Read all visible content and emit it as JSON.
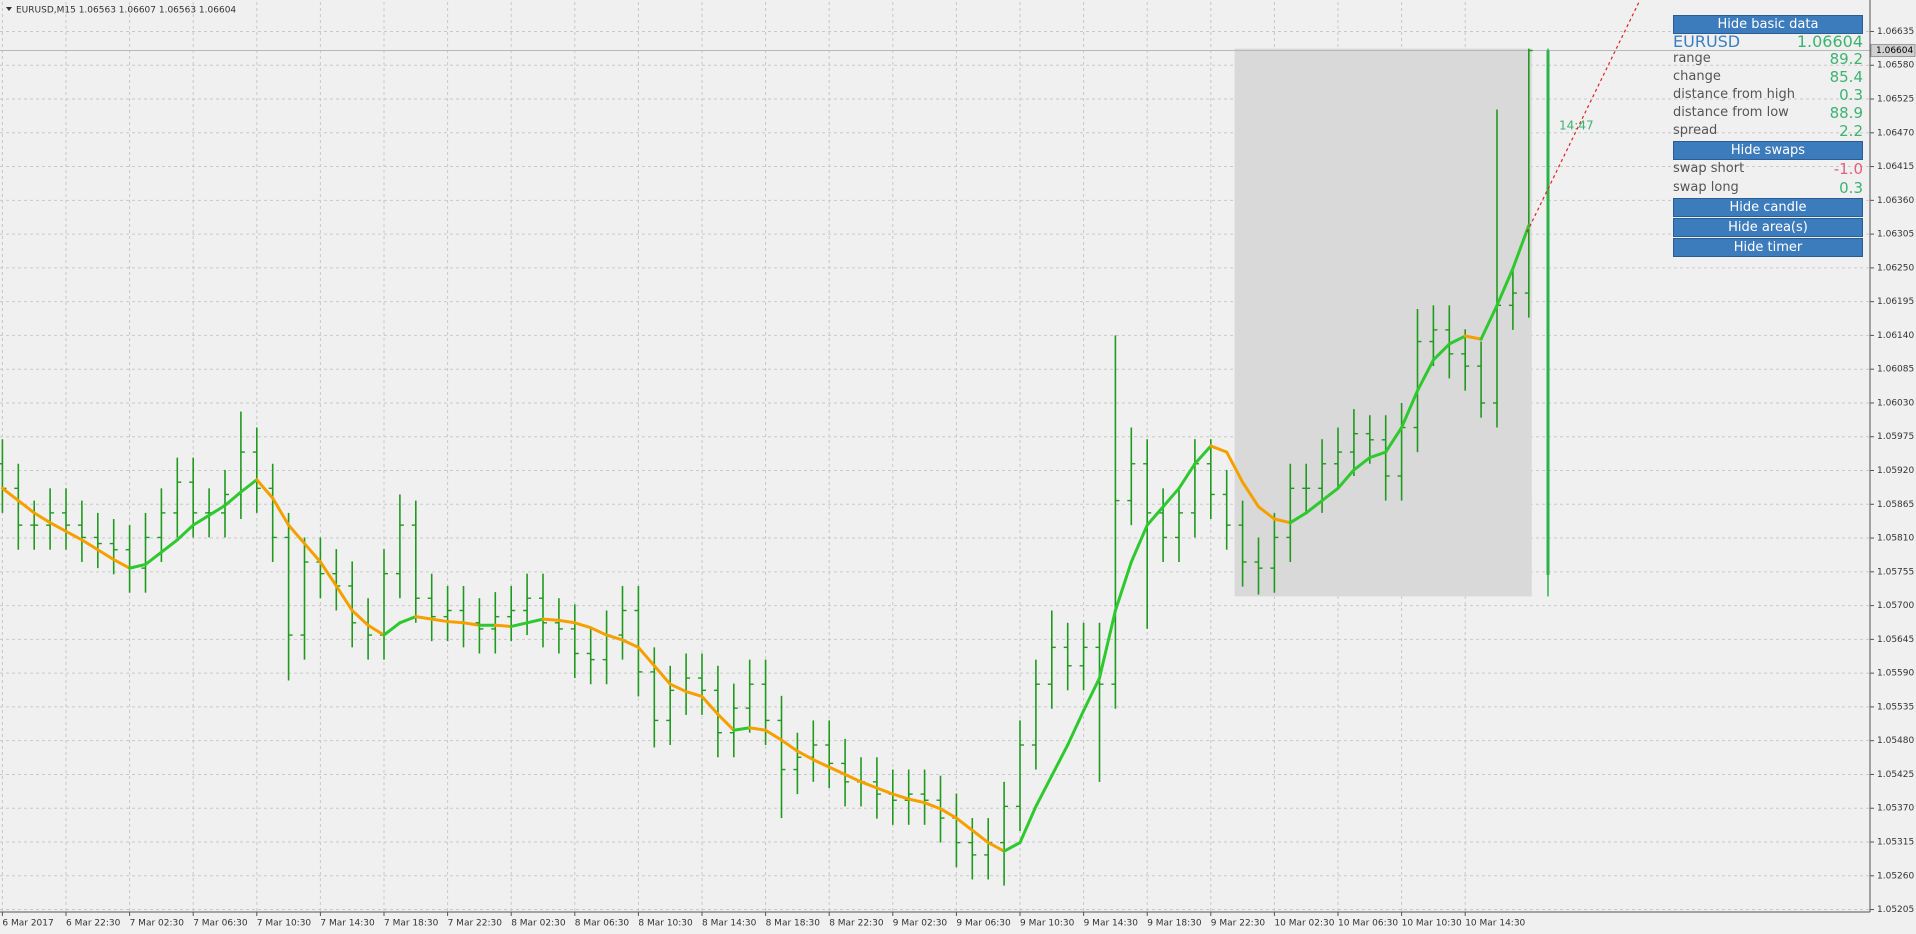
{
  "chart_data": {
    "type": "ohlc",
    "title": "EURUSD,M15  1.06563 1.06607 1.06563 1.06604",
    "color": "#1f9a1f",
    "categories": [
      "6 Mar 2017",
      null,
      null,
      null,
      "6 Mar 22:30",
      null,
      null,
      null,
      "7 Mar 02:30",
      null,
      null,
      null,
      "7 Mar 06:30",
      null,
      null,
      null,
      "7 Mar 10:30",
      null,
      null,
      null,
      "7 Mar 14:30",
      null,
      null,
      null,
      "7 Mar 18:30",
      null,
      null,
      null,
      "7 Mar 22:30",
      null,
      null,
      null,
      "8 Mar 02:30",
      null,
      null,
      null,
      "8 Mar 06:30",
      null,
      null,
      null,
      "8 Mar 10:30",
      null,
      null,
      null,
      "8 Mar 14:30",
      null,
      null,
      null,
      "8 Mar 18:30",
      null,
      null,
      null,
      "8 Mar 22:30",
      null,
      null,
      null,
      "9 Mar 02:30",
      null,
      null,
      null,
      "9 Mar 06:30",
      null,
      null,
      null,
      "9 Mar 10:30",
      null,
      null,
      null,
      "9 Mar 14:30",
      null,
      null,
      null,
      "9 Mar 18:30",
      null,
      null,
      null,
      "9 Mar 22:30",
      null,
      null,
      null,
      "10 Mar 02:30",
      null,
      null,
      null,
      "10 Mar 06:30",
      null,
      null,
      null,
      "10 Mar 10:30",
      null,
      null,
      null,
      "10 Mar 14:30",
      null,
      null,
      null,
      null
    ],
    "open": [
      1.05931,
      1.05891,
      1.05831,
      1.05831,
      1.05851,
      1.05831,
      1.05811,
      1.05801,
      1.05791,
      1.05761,
      1.05811,
      1.05851,
      1.05901,
      1.05851,
      1.05851,
      1.05881,
      1.0595,
      1.05891,
      1.05811,
      1.05652,
      1.05771,
      1.05752,
      1.05732,
      1.05672,
      1.05652,
      1.05752,
      1.05831,
      1.05712,
      1.05682,
      1.05692,
      1.05672,
      1.05662,
      1.05682,
      1.05692,
      1.05712,
      1.05672,
      1.05662,
      1.05622,
      1.05612,
      1.05652,
      1.05692,
      1.05592,
      1.05513,
      1.05562,
      1.05582,
      1.05562,
      1.05493,
      1.05533,
      1.05572,
      1.05513,
      1.05433,
      1.05453,
      1.05473,
      1.05443,
      1.05413,
      1.05413,
      1.05393,
      1.05383,
      1.05393,
      1.05383,
      1.05354,
      1.05314,
      1.05294,
      1.05314,
      1.05373,
      1.05473,
      1.05572,
      1.05632,
      1.05602,
      1.05632,
      1.05572,
      1.05871,
      1.05931,
      1.05851,
      1.05811,
      1.05851,
      1.05931,
      1.05881,
      1.05831,
      1.05771,
      1.05761,
      1.05811,
      1.05891,
      1.05891,
      1.05931,
      1.0595,
      1.0598,
      1.0597,
      1.05911,
      1.0599,
      1.0613,
      1.06149,
      1.0611,
      1.0609,
      1.0603,
      1.06189,
      1.06209
    ],
    "high": [
      1.05971,
      1.05931,
      1.05871,
      1.05891,
      1.05891,
      1.05871,
      1.05851,
      1.05841,
      1.05831,
      1.05851,
      1.05891,
      1.05941,
      1.05941,
      1.05891,
      1.05921,
      1.06016,
      1.0599,
      1.05931,
      1.05851,
      1.05811,
      1.05811,
      1.05792,
      1.05772,
      1.05712,
      1.05792,
      1.05881,
      1.05871,
      1.05752,
      1.05732,
      1.05732,
      1.05712,
      1.05722,
      1.05732,
      1.05752,
      1.05752,
      1.05712,
      1.05702,
      1.05662,
      1.05692,
      1.05732,
      1.05732,
      1.05632,
      1.05602,
      1.05622,
      1.05622,
      1.05602,
      1.05573,
      1.05612,
      1.05612,
      1.05553,
      1.05493,
      1.05513,
      1.05513,
      1.05483,
      1.05453,
      1.05453,
      1.05433,
      1.05433,
      1.05433,
      1.05423,
      1.05394,
      1.05354,
      1.05354,
      1.05413,
      1.05513,
      1.05612,
      1.05692,
      1.05672,
      1.05672,
      1.05672,
      1.0614,
      1.0599,
      1.05971,
      1.05891,
      1.05891,
      1.05971,
      1.05971,
      1.05921,
      1.05871,
      1.05811,
      1.05851,
      1.05931,
      1.05931,
      1.05971,
      1.0599,
      1.0602,
      1.0601,
      1.0601,
      1.0603,
      1.06183,
      1.06189,
      1.06189,
      1.0615,
      1.0613,
      1.06508,
      1.06249,
      1.06607
    ],
    "low": [
      1.05851,
      1.05791,
      1.05791,
      1.05791,
      1.05791,
      1.05771,
      1.05761,
      1.05751,
      1.05721,
      1.05721,
      1.05771,
      1.05811,
      1.05811,
      1.05811,
      1.05811,
      1.05841,
      1.05851,
      1.05771,
      1.05578,
      1.05612,
      1.05712,
      1.05692,
      1.05632,
      1.05612,
      1.05612,
      1.05712,
      1.05672,
      1.05642,
      1.05642,
      1.05632,
      1.05622,
      1.05622,
      1.05642,
      1.05652,
      1.05632,
      1.05622,
      1.05582,
      1.05572,
      1.05572,
      1.05612,
      1.05552,
      1.05469,
      1.05473,
      1.05522,
      1.05522,
      1.05453,
      1.05453,
      1.05493,
      1.05473,
      1.05354,
      1.05393,
      1.05413,
      1.05403,
      1.05373,
      1.05373,
      1.05353,
      1.05343,
      1.05343,
      1.05343,
      1.05314,
      1.05274,
      1.05254,
      1.05254,
      1.05244,
      1.05333,
      1.05433,
      1.05532,
      1.05562,
      1.05562,
      1.05413,
      1.05532,
      1.05831,
      1.05662,
      1.05771,
      1.05771,
      1.05811,
      1.05841,
      1.05791,
      1.05731,
      1.05718,
      1.05721,
      1.05771,
      1.05851,
      1.05851,
      1.05891,
      1.05911,
      1.05931,
      1.05871,
      1.05871,
      1.0595,
      1.0609,
      1.0607,
      1.0605,
      1.06006,
      1.0599,
      1.06149,
      1.06169
    ],
    "close": [
      1.05891,
      1.05831,
      1.05831,
      1.05851,
      1.05831,
      1.05811,
      1.05801,
      1.05791,
      1.05761,
      1.05811,
      1.05851,
      1.05901,
      1.05851,
      1.05851,
      1.05881,
      1.0595,
      1.05891,
      1.05811,
      1.05652,
      1.05771,
      1.05752,
      1.05732,
      1.05672,
      1.05652,
      1.05752,
      1.05831,
      1.05712,
      1.05682,
      1.05692,
      1.05672,
      1.05662,
      1.05682,
      1.05692,
      1.05712,
      1.05672,
      1.05662,
      1.05622,
      1.05612,
      1.05652,
      1.05692,
      1.05592,
      1.05513,
      1.05562,
      1.05582,
      1.05562,
      1.05493,
      1.05533,
      1.05572,
      1.05513,
      1.05433,
      1.05453,
      1.05473,
      1.05443,
      1.05413,
      1.05413,
      1.05393,
      1.05383,
      1.05393,
      1.05383,
      1.05354,
      1.05314,
      1.05294,
      1.05314,
      1.05373,
      1.05473,
      1.05572,
      1.05632,
      1.05602,
      1.05632,
      1.05572,
      1.05871,
      1.05931,
      1.05851,
      1.05811,
      1.05851,
      1.05931,
      1.05881,
      1.05831,
      1.05771,
      1.05761,
      1.05811,
      1.05891,
      1.05891,
      1.05931,
      1.0595,
      1.0598,
      1.0597,
      1.05911,
      1.0599,
      1.0613,
      1.06149,
      1.0611,
      1.0609,
      1.0603,
      1.06189,
      1.06209,
      1.06604
    ],
    "ma": {
      "up_color": "#2ec92e",
      "down_color": "#f5a000",
      "values": [
        1.05891,
        1.05871,
        1.05851,
        1.05835,
        1.05821,
        1.05807,
        1.05791,
        1.05775,
        1.05761,
        1.05767,
        1.05787,
        1.05807,
        1.05831,
        1.05847,
        1.05863,
        1.05885,
        1.05905,
        1.05875,
        1.05831,
        1.05801,
        1.05771,
        1.05732,
        1.05692,
        1.05668,
        1.05652,
        1.05672,
        1.05682,
        1.05678,
        1.05674,
        1.05672,
        1.05668,
        1.05668,
        1.05666,
        1.05672,
        1.05678,
        1.05676,
        1.05672,
        1.05664,
        1.05652,
        1.05644,
        1.05632,
        1.05602,
        1.05572,
        1.0556,
        1.05552,
        1.05523,
        1.05497,
        1.05501,
        1.05497,
        1.05481,
        1.05463,
        1.05449,
        1.05437,
        1.05425,
        1.05413,
        1.05403,
        1.05393,
        1.05385,
        1.05379,
        1.05369,
        1.05354,
        1.05334,
        1.05314,
        1.053,
        1.05314,
        1.05373,
        1.05423,
        1.05473,
        1.05529,
        1.05582,
        1.05692,
        1.05771,
        1.05831,
        1.05861,
        1.05891,
        1.05931,
        1.0596,
        1.0595,
        1.05901,
        1.05861,
        1.05841,
        1.05835,
        1.05851,
        1.05871,
        1.05891,
        1.05921,
        1.05941,
        1.0595,
        1.0599,
        1.0605,
        1.061,
        1.06126,
        1.06139,
        1.06134,
        1.06189,
        1.06249,
        1.06319
      ]
    },
    "area": {
      "bars": [
        78,
        96
      ],
      "high": 1.06607,
      "low": 1.05715,
      "color": "#d9d9d9"
    },
    "candle": {
      "open": 1.0575,
      "high": 1.06607,
      "low": 1.05715,
      "close": 1.06604,
      "color": "#2bb24c"
    },
    "timer": "14:47",
    "bid": 1.06604,
    "ylim": [
      1.05201,
      1.06683
    ],
    "yticks": [
      1.05205,
      {
        "value": 1.0526,
        "label": "1.05260"
      },
      1.05315,
      {
        "value": 1.0537,
        "label": "1.05370"
      },
      1.05425,
      {
        "value": 1.0548,
        "label": "1.05480"
      },
      1.05535,
      {
        "value": 1.0559,
        "label": "1.05590"
      },
      1.05645,
      {
        "value": 1.057,
        "label": "1.05700"
      },
      1.05755,
      {
        "value": 1.0581,
        "label": "1.05810"
      },
      1.05865,
      {
        "value": 1.0592,
        "label": "1.05920"
      },
      1.05975,
      {
        "value": 1.0603,
        "label": "1.06030"
      },
      1.06085,
      {
        "value": 1.0614,
        "label": "1.06140"
      },
      1.06195,
      {
        "value": 1.0625,
        "label": "1.06250"
      },
      1.06305,
      {
        "value": 1.0636,
        "label": "1.06360"
      },
      1.06415,
      {
        "value": 1.0647,
        "label": "1.06470"
      },
      1.06525,
      {
        "value": 1.0658,
        "label": "1.06580"
      },
      1.06635
    ],
    "grid": true
  },
  "panel": {
    "hide_basic_data": "Hide basic data",
    "symbol": "EURUSD",
    "price": "1.06604",
    "rows": [
      {
        "label": "range",
        "value": "89.2"
      },
      {
        "label": "change",
        "value": "85.4"
      },
      {
        "label": "distance from high",
        "value": "0.3"
      },
      {
        "label": "distance from low",
        "value": "88.9"
      },
      {
        "label": "spread",
        "value": "2.2"
      }
    ],
    "hide_swaps": "Hide swaps",
    "swaps": [
      {
        "label": "swap short",
        "value": "-1.0"
      },
      {
        "label": "swap long",
        "value": "0.3"
      }
    ],
    "buttons": [
      "Hide candle",
      "Hide area(s)",
      "Hide timer"
    ]
  }
}
